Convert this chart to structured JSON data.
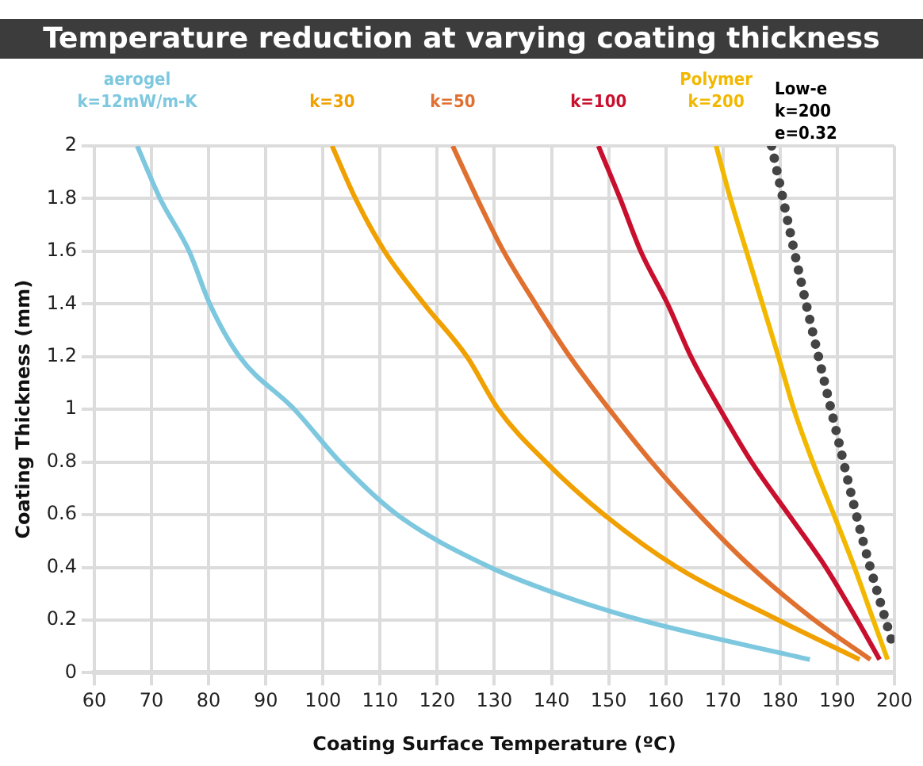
{
  "chart_data": {
    "type": "line",
    "title": "Temperature reduction at varying coating thickness",
    "xlabel": "Coating Surface Temperature (ºC)",
    "ylabel": "Coating Thickness (mm)",
    "xlim": [
      60,
      200
    ],
    "xticks": [
      60,
      70,
      80,
      90,
      100,
      110,
      120,
      130,
      140,
      150,
      160,
      170,
      180,
      190,
      200
    ],
    "ylim": [
      0,
      2
    ],
    "yticks": [
      0,
      0.2,
      0.4,
      0.6,
      0.8,
      1,
      1.2,
      1.4,
      1.6,
      1.8,
      2
    ],
    "grid": true,
    "legend": false,
    "marker": "none",
    "line_style": "solid",
    "series": [
      {
        "name": "aerogel\nk=12mW/m-K",
        "color": "#7ec8df",
        "x": [
          67.5,
          71.5,
          76.6,
          80.2,
          85.4,
          95,
          103,
          113,
          129.3,
          140.9,
          155.6,
          185.2
        ],
        "values": [
          2,
          1.8,
          1.6,
          1.4,
          1.2,
          1,
          0.8,
          0.6,
          0.4,
          0.3,
          0.2,
          0.05
        ]
      },
      {
        "name": "k=30",
        "color": "#f0a000",
        "x": [
          101.6,
          105.7,
          110.8,
          117.7,
          125.2,
          130.7,
          139,
          149.2,
          162,
          179.7,
          193.9
        ],
        "values": [
          2,
          1.8,
          1.6,
          1.4,
          1.2,
          1,
          0.8,
          0.6,
          0.4,
          0.2,
          0.05
        ]
      },
      {
        "name": "k=50",
        "color": "#e07030",
        "x": [
          122.7,
          127,
          131.6,
          137.2,
          143.2,
          150.1,
          157.5,
          165.8,
          175,
          186,
          195.8
        ],
        "values": [
          2,
          1.8,
          1.6,
          1.4,
          1.2,
          1,
          0.8,
          0.6,
          0.4,
          0.2,
          0.05
        ]
      },
      {
        "name": "k=100",
        "color": "#c8102e",
        "x": [
          148.2,
          152,
          155.6,
          160.3,
          164.4,
          169.5,
          175,
          181.5,
          188,
          193.5,
          197.4
        ],
        "values": [
          2,
          1.8,
          1.6,
          1.4,
          1.2,
          1,
          0.8,
          0.6,
          0.4,
          0.2,
          0.05
        ]
      },
      {
        "name": "Polymer\nk=200",
        "color": "#f2b800",
        "x": [
          168.8,
          171.3,
          174.1,
          176.9,
          179.7,
          182.4,
          185.7,
          189.4,
          193,
          196.3,
          198.8
        ],
        "values": [
          2,
          1.8,
          1.6,
          1.4,
          1.2,
          1,
          0.8,
          0.6,
          0.4,
          0.2,
          0.05
        ]
      },
      {
        "name": "Low-e\nk=200\ne=0.32",
        "color": "#444444",
        "line_style": "dotted",
        "x": [
          178.5,
          183.5,
          188.9,
          194.5,
          199.8
        ],
        "values": [
          2,
          1.5,
          1,
          0.5,
          0.1
        ]
      }
    ]
  }
}
